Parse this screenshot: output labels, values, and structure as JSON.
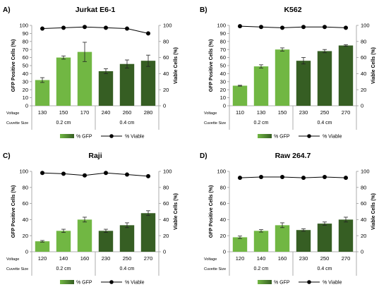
{
  "colors": {
    "light_green": "#71b743",
    "dark_green": "#365e23",
    "viable_line": "#000000",
    "axis": "#999999"
  },
  "shared": {
    "y_left_label": "GFP Positive Cells (%)",
    "y_right_label": "Viable Cells (%)",
    "voltage_label": "Voltage",
    "cuvette_label": "Cuvette Size",
    "legend_gfp": "% GFP",
    "legend_viable": "% Viable"
  },
  "chart_data": [
    {
      "letter": "A)",
      "title": "Jurkat E6-1",
      "type": "bar",
      "categories": [
        "130",
        "150",
        "170",
        "240",
        "260",
        "280"
      ],
      "groups": [
        "0.2 cm",
        "0.4 cm"
      ],
      "ylim_left": [
        0,
        100
      ],
      "ylim_right": [
        0,
        100
      ],
      "left_ticks": [
        "0",
        "10",
        "20",
        "30",
        "40",
        "50",
        "60",
        "70",
        "80",
        "90",
        "100"
      ],
      "right_ticks": [
        "0",
        "20",
        "40",
        "60",
        "80",
        "100"
      ],
      "series": [
        {
          "name": "% GFP",
          "kind": "bar",
          "values": [
            32,
            60,
            67,
            43,
            52,
            56
          ],
          "errors": [
            3,
            2,
            12,
            3,
            5,
            7
          ]
        },
        {
          "name": "% Viable",
          "kind": "line",
          "values": [
            96,
            97,
            98,
            97,
            96,
            90
          ]
        }
      ]
    },
    {
      "letter": "B)",
      "title": "K562",
      "type": "bar",
      "categories": [
        "110",
        "130",
        "150",
        "230",
        "250",
        "270"
      ],
      "groups": [
        "0.2 cm",
        "0.4 cm"
      ],
      "ylim_left": [
        0,
        100
      ],
      "ylim_right": [
        0,
        100
      ],
      "left_ticks": [
        "0",
        "10",
        "20",
        "30",
        "40",
        "50",
        "60",
        "70",
        "80",
        "90",
        "100"
      ],
      "right_ticks": [
        "0",
        "20",
        "40",
        "60",
        "80",
        "100"
      ],
      "series": [
        {
          "name": "% GFP",
          "kind": "bar",
          "values": [
            25,
            49,
            70,
            56,
            68,
            75
          ],
          "errors": [
            0.5,
            2,
            2,
            4,
            2,
            1
          ]
        },
        {
          "name": "% Viable",
          "kind": "line",
          "values": [
            99,
            98,
            97,
            98,
            98,
            97
          ]
        }
      ]
    },
    {
      "letter": "C)",
      "title": "Raji",
      "type": "bar",
      "categories": [
        "120",
        "140",
        "160",
        "230",
        "250",
        "270"
      ],
      "groups": [
        "0.2 cm",
        "0.4 cm"
      ],
      "ylim_left": [
        0,
        100
      ],
      "ylim_right": [
        0,
        100
      ],
      "left_ticks": [
        "0",
        "20",
        "40",
        "60",
        "80",
        "100"
      ],
      "right_ticks": [
        "0",
        "20",
        "40",
        "60",
        "80",
        "100"
      ],
      "series": [
        {
          "name": "% GFP",
          "kind": "bar",
          "values": [
            13,
            26,
            40,
            26,
            33,
            48
          ],
          "errors": [
            1,
            2,
            3,
            2,
            3,
            3
          ]
        },
        {
          "name": "% Viable",
          "kind": "line",
          "values": [
            98,
            97,
            95,
            98,
            96,
            94
          ]
        }
      ]
    },
    {
      "letter": "D)",
      "title": "Raw 264.7",
      "type": "bar",
      "categories": [
        "120",
        "140",
        "160",
        "230",
        "250",
        "270"
      ],
      "groups": [
        "0.2 cm",
        "0.4 cm"
      ],
      "ylim_left": [
        0,
        100
      ],
      "ylim_right": [
        0,
        100
      ],
      "left_ticks": [
        "0",
        "20",
        "40",
        "60",
        "80",
        "100"
      ],
      "right_ticks": [
        "0",
        "20",
        "40",
        "60",
        "80",
        "100"
      ],
      "series": [
        {
          "name": "% GFP",
          "kind": "bar",
          "values": [
            18,
            26,
            33,
            27,
            35,
            40
          ],
          "errors": [
            1.5,
            1.5,
            3,
            1.5,
            2,
            3
          ]
        },
        {
          "name": "% Viable",
          "kind": "line",
          "values": [
            92,
            93,
            93,
            92,
            93,
            92
          ]
        }
      ]
    }
  ]
}
